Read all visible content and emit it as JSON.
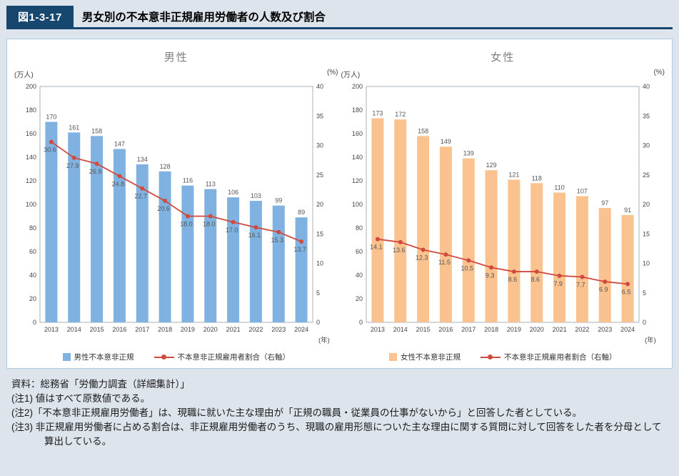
{
  "figure": {
    "label": "図1-3-17",
    "title": "男女別の不本意非正規雇用労働者の人数及び割合"
  },
  "chart_data": [
    {
      "type": "bar",
      "title": "男性",
      "categories": [
        "2013",
        "2014",
        "2015",
        "2016",
        "2017",
        "2018",
        "2019",
        "2020",
        "2021",
        "2022",
        "2023",
        "2024"
      ],
      "series": [
        {
          "name": "男性不本意非正規",
          "type": "bar",
          "axis": "left",
          "color": "#7fb2e0",
          "values": [
            170,
            161,
            158,
            147,
            134,
            128,
            116,
            113,
            106,
            103,
            99,
            89
          ]
        },
        {
          "name": "不本意非正規雇用者割合（右軸）",
          "type": "line",
          "axis": "right",
          "color": "#d04b3d",
          "values": [
            30.6,
            27.9,
            26.9,
            24.8,
            22.7,
            20.6,
            18.0,
            18.0,
            17.0,
            16.1,
            15.3,
            13.7
          ],
          "value_labels": [
            "30.6",
            "27.9",
            "26.9",
            "24.8",
            "22.7",
            "20.6",
            "18.0",
            "18.0",
            "17.0",
            "16.1",
            "15.3",
            "13.7"
          ]
        }
      ],
      "left_axis": {
        "unit": "(万人)",
        "min": 0,
        "max": 200,
        "step": 20
      },
      "right_axis": {
        "unit": "(%)",
        "min": 0,
        "max": 40,
        "step": 5
      },
      "x_axis": {
        "unit": "(年)"
      },
      "grid": false,
      "legend_position": "bottom"
    },
    {
      "type": "bar",
      "title": "女性",
      "categories": [
        "2013",
        "2014",
        "2015",
        "2016",
        "2017",
        "2018",
        "2019",
        "2020",
        "2021",
        "2022",
        "2023",
        "2024"
      ],
      "series": [
        {
          "name": "女性不本意非正規",
          "type": "bar",
          "axis": "left",
          "color": "#f9c28e",
          "values": [
            173,
            172,
            158,
            149,
            139,
            129,
            121,
            118,
            110,
            107,
            97,
            91
          ]
        },
        {
          "name": "不本意非正規雇用者割合（右軸）",
          "type": "line",
          "axis": "right",
          "color": "#d04b3d",
          "values": [
            14.1,
            13.6,
            12.3,
            11.5,
            10.5,
            9.3,
            8.6,
            8.6,
            7.9,
            7.7,
            6.9,
            6.5
          ],
          "value_labels": [
            "14.1",
            "13.6",
            "12.3",
            "11.5",
            "10.5",
            "9.3",
            "8.6",
            "8.6",
            "7.9",
            "7.7",
            "6.9",
            "6.5"
          ]
        }
      ],
      "left_axis": {
        "unit": "(万人)",
        "min": 0,
        "max": 200,
        "step": 20
      },
      "right_axis": {
        "unit": "(%)",
        "min": 0,
        "max": 40,
        "step": 5
      },
      "x_axis": {
        "unit": "(年)"
      },
      "grid": false,
      "legend_position": "bottom"
    }
  ],
  "footer": {
    "source": "資料：総務省「労働力調査（詳細集計）」",
    "notes": [
      "(注1) 値はすべて原数値である。",
      "(注2)「不本意非正規雇用労働者」は、現職に就いた主な理由が「正規の職員・従業員の仕事がないから」と回答した者としている。",
      "(注3) 非正規雇用労働者に占める割合は、非正規雇用労働者のうち、現職の雇用形態についた主な理由に関する質問に対して回答をした者を分母として算出している。"
    ]
  },
  "colors": {
    "header_navy": "#17476e",
    "panel_border": "#aecbdf",
    "background": "#dde4ec",
    "male_bar": "#7fb2e0",
    "female_bar": "#f9c28e",
    "rate_line": "#d04b3d"
  }
}
